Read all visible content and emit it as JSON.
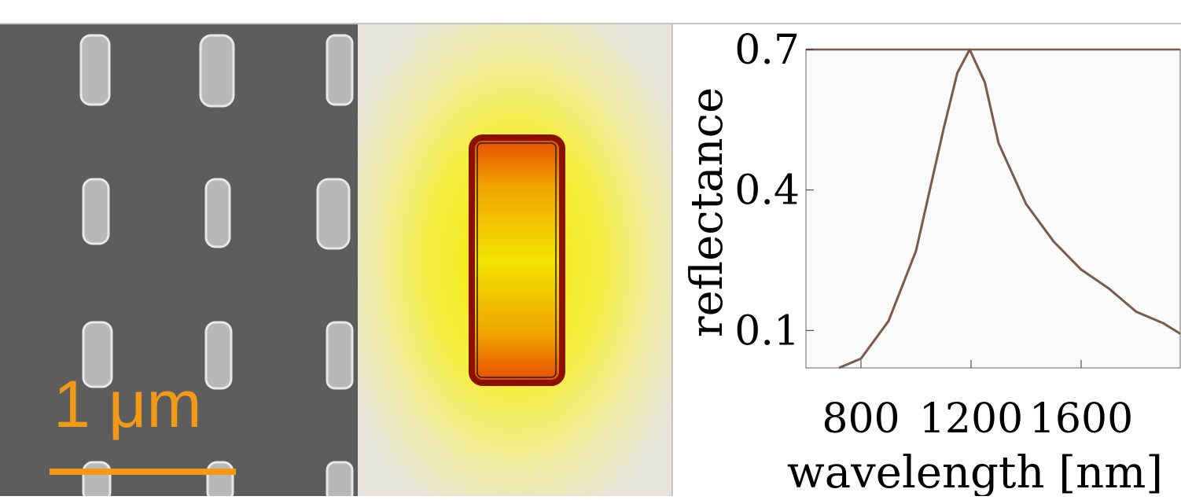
{
  "scale_bar": {
    "label": "1 μm"
  },
  "chart_data": {
    "type": "line",
    "x_label": "wavelength [nm]",
    "y_label": "reflectance",
    "x": [
      720,
      800,
      900,
      1000,
      1100,
      1150,
      1195,
      1250,
      1300,
      1400,
      1500,
      1600,
      1700,
      1800,
      1900,
      1960
    ],
    "series": [
      {
        "name": "reflectance",
        "color": "#7a5a48",
        "values": [
          0.02,
          0.04,
          0.12,
          0.27,
          0.53,
          0.65,
          0.7,
          0.63,
          0.5,
          0.37,
          0.29,
          0.23,
          0.19,
          0.14,
          0.115,
          0.093
        ]
      }
    ],
    "xlim": [
      600,
      1960
    ],
    "ylim": [
      0.02,
      0.7
    ],
    "xticks": [
      800,
      1200,
      1600
    ],
    "yticks": [
      0.1,
      0.4,
      0.7
    ]
  }
}
